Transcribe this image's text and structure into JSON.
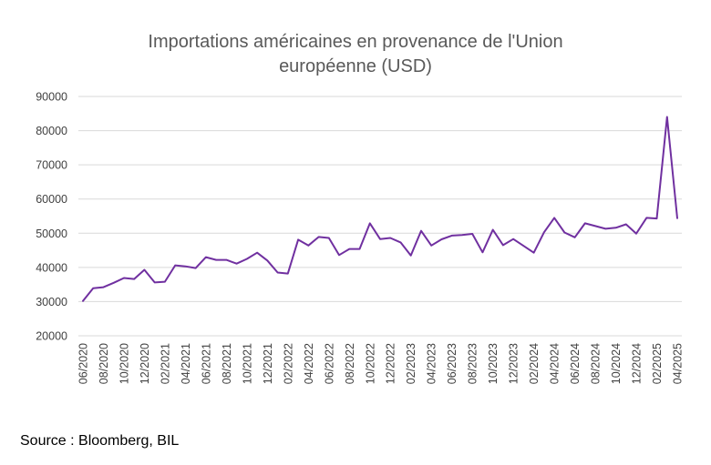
{
  "title_line1": "Importations américaines en provenance de l'Union",
  "title_line2": "européenne (USD)",
  "source": "Source : Bloomberg, BIL",
  "colors": {
    "line": "#7030A0",
    "grid": "#d9d9d9",
    "text": "#404040",
    "title": "#595959"
  },
  "chart_data": {
    "type": "line",
    "title": "Importations américaines en provenance de l'Union européenne (USD)",
    "xlabel": "",
    "ylabel": "",
    "ylim": [
      20000,
      90000
    ],
    "yticks": [
      20000,
      30000,
      40000,
      50000,
      60000,
      70000,
      80000,
      90000
    ],
    "grid": true,
    "x_tick_labels": [
      "06/2020",
      "08/2020",
      "10/2020",
      "12/2020",
      "02/2021",
      "04/2021",
      "06/2021",
      "08/2021",
      "10/2021",
      "12/2021",
      "02/2022",
      "04/2022",
      "06/2022",
      "08/2022",
      "10/2022",
      "12/2022",
      "02/2023",
      "04/2023",
      "06/2023",
      "08/2023",
      "10/2023",
      "12/2023",
      "02/2024",
      "04/2024",
      "06/2024",
      "08/2024",
      "10/2024",
      "12/2024",
      "02/2025",
      "04/2025"
    ],
    "x": [
      "06/2020",
      "07/2020",
      "08/2020",
      "09/2020",
      "10/2020",
      "11/2020",
      "12/2020",
      "01/2021",
      "02/2021",
      "03/2021",
      "04/2021",
      "05/2021",
      "06/2021",
      "07/2021",
      "08/2021",
      "09/2021",
      "10/2021",
      "11/2021",
      "12/2021",
      "01/2022",
      "02/2022",
      "03/2022",
      "04/2022",
      "05/2022",
      "06/2022",
      "07/2022",
      "08/2022",
      "09/2022",
      "10/2022",
      "11/2022",
      "12/2022",
      "01/2023",
      "02/2023",
      "03/2023",
      "04/2023",
      "05/2023",
      "06/2023",
      "07/2023",
      "08/2023",
      "09/2023",
      "10/2023",
      "11/2023",
      "12/2023",
      "01/2024",
      "02/2024",
      "03/2024",
      "04/2024",
      "05/2024",
      "06/2024",
      "07/2024",
      "08/2024",
      "09/2024",
      "10/2024",
      "11/2024",
      "12/2024",
      "01/2025",
      "02/2025",
      "03/2025",
      "04/2025"
    ],
    "series": [
      {
        "values": [
          30200,
          33900,
          34200,
          35500,
          36900,
          36600,
          39300,
          35600,
          35800,
          40600,
          40300,
          39800,
          43000,
          42200,
          42200,
          41100,
          42500,
          44300,
          42000,
          38500,
          38200,
          48100,
          46400,
          48900,
          48600,
          43600,
          45400,
          45400,
          52900,
          48300,
          48600,
          47300,
          43500,
          50700,
          46400,
          48200,
          49300,
          49500,
          49800,
          44400,
          51000,
          46500,
          48300,
          46300,
          44300,
          50300,
          54500,
          50200,
          48800,
          52900,
          52100,
          51300,
          51600,
          52600,
          49900,
          54500,
          54300,
          84000,
          54400
        ]
      }
    ]
  }
}
